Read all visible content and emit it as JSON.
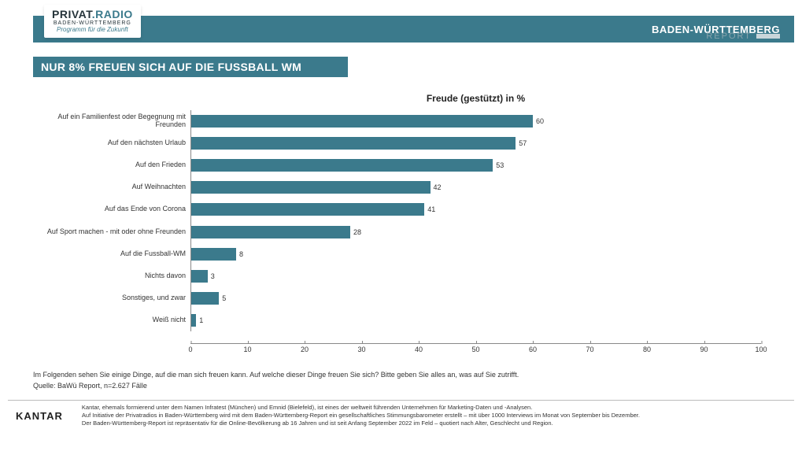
{
  "logo": {
    "main_left": "PRIVAT",
    "main_dot": ".",
    "main_right": "RADIO",
    "sub1": "BADEN-WÜRTTEMBERG",
    "sub2": "Programm für die Zukunft"
  },
  "header": {
    "right_title": "BADEN-WÜRTTEMBERG",
    "right_sub": "REPORT"
  },
  "title_bar": "NUR 8% FREUEN SICH AUF DIE FUSSBALL WM",
  "chart": {
    "type": "bar-horizontal",
    "title": "Freude (gestützt) in %",
    "bar_color": "#3b7a8c",
    "label_fontsize": 9,
    "value_fontsize": 9,
    "xlim": [
      0,
      100
    ],
    "xtick_step": 10,
    "xticks": [
      0,
      10,
      20,
      30,
      40,
      50,
      60,
      70,
      80,
      90,
      100
    ],
    "background_color": "#ffffff",
    "axis_color": "#888888",
    "rows": [
      {
        "label": "Auf ein Familienfest oder Begegnung mit Freunden",
        "value": 60
      },
      {
        "label": "Auf den nächsten Urlaub",
        "value": 57
      },
      {
        "label": "Auf den Frieden",
        "value": 53
      },
      {
        "label": "Auf Weihnachten",
        "value": 42
      },
      {
        "label": "Auf das Ende von Corona",
        "value": 41
      },
      {
        "label": "Auf Sport machen - mit oder ohne Freunden",
        "value": 28
      },
      {
        "label": "Auf die Fussball-WM",
        "value": 8
      },
      {
        "label": "Nichts davon",
        "value": 3
      },
      {
        "label": "Sonstiges, und zwar",
        "value": 5
      },
      {
        "label": "Weiß nicht",
        "value": 1
      }
    ]
  },
  "question": "Im Folgenden sehen Sie einige Dinge, auf die man sich freuen kann. Auf welche dieser Dinge freuen Sie sich? Bitte geben Sie alles an, was auf Sie zutrifft.",
  "source": "Quelle: BaWü Report, n=2.627 Fälle",
  "footer": {
    "kantar": "KANTAR",
    "line1": "Kantar, ehemals formierend unter dem Namen Infratest (München) und Emnid (Bielefeld), ist eines der weltweit führenden Unternehmen für Marketing-Daten und -Analysen.",
    "line2": "Auf Initiative der Privatradios in Baden-Württemberg wird mit dem Baden-Württemberg-Report ein gesellschaftliches Stimmungsbarometer erstellt – mit über 1000 Interviews im Monat von September bis Dezember.",
    "line3": "Der Baden-Württemberg-Report ist repräsentativ für die Online-Bevölkerung ab 16 Jahren und ist seit Anfang September 2022 im Feld – quotiert nach Alter, Geschlecht und Region."
  }
}
